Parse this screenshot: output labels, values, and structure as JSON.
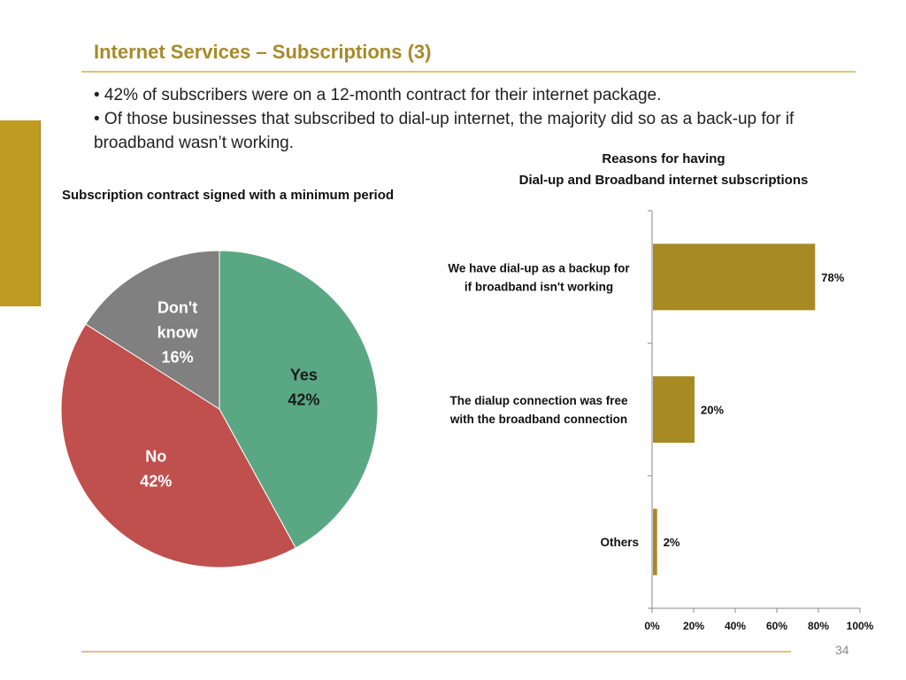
{
  "slide": {
    "title": "Internet Services – Subscriptions (3)",
    "bullets": [
      "• 42% of subscribers were on a 12-month contract for their internet package.",
      "• Of those businesses that subscribed to dial-up internet, the majority did so as a back-up for if broadband  wasn’t working."
    ],
    "page_number": "34",
    "accent_color": "#c09b22"
  },
  "chart_data": [
    {
      "type": "pie",
      "title": "Subscription contract signed with a minimum period",
      "slices": [
        {
          "label_lines": [
            "Yes",
            "42%"
          ],
          "value": 42,
          "color": "#5aa784",
          "label_color": "#1a1a1a"
        },
        {
          "label_lines": [
            "No",
            "42%"
          ],
          "value": 42,
          "color": "#c0504d",
          "label_color": "#ffffff"
        },
        {
          "label_lines": [
            "Don't",
            "know",
            "16%"
          ],
          "value": 16,
          "color": "#808080",
          "label_color": "#ffffff"
        }
      ]
    },
    {
      "type": "bar",
      "orientation": "horizontal",
      "title_lines": [
        "Reasons for having",
        "Dial-up and Broadband internet subscriptions"
      ],
      "categories": [
        [
          "We have dial-up as a backup for",
          "if broadband isn't working"
        ],
        [
          "The dialup connection was free",
          "with the broadband connection"
        ],
        [
          "Others"
        ]
      ],
      "values": [
        78,
        20,
        2
      ],
      "value_labels": [
        "78%",
        "20%",
        "2%"
      ],
      "xlim": [
        0,
        100
      ],
      "x_ticks": [
        "0%",
        "20%",
        "40%",
        "60%",
        "80%",
        "100%"
      ],
      "bar_color": "#a78a23",
      "grid": false
    }
  ]
}
